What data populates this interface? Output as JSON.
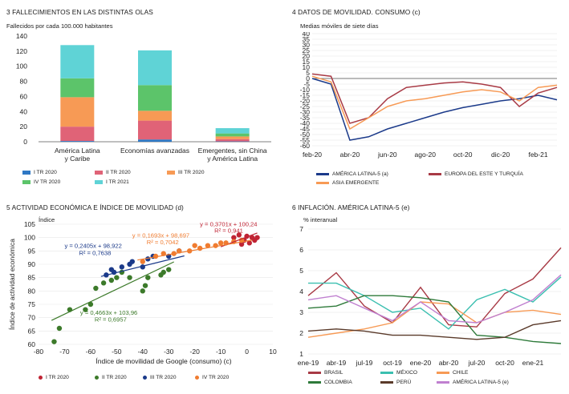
{
  "panels": {
    "p1": {
      "title": "3  FALLECIMIENTOS EN LAS DISTINTAS OLAS",
      "subtitle": "Fallecidos por cada 100.000 habitantes"
    },
    "p2": {
      "title": "4  DATOS DE MOVILIDAD. CONSUMO (c)",
      "subtitle": "Medias móviles de siete días"
    },
    "p3": {
      "title": "5  ACTIVIDAD ECONÓMICA E ÍNDICE DE MOVILIDAD (d)",
      "subtitle": "Índice"
    },
    "p4": {
      "title": "6  INFLACIÓN. AMÉRICA LATINA-5 (e)",
      "subtitle": "% interanual"
    }
  },
  "colors": {
    "blue_dark": "#1f4e8c",
    "blue": "#2f78c4",
    "red": "#e06377",
    "orange": "#f79a55",
    "green": "#5cc46a",
    "cyan": "#5fd3d6",
    "burgundy": "#a83a45",
    "navy": "#1b3a8a",
    "crimson": "#c02434",
    "dgreen": "#3c7a2a",
    "teal": "#3bbfb0",
    "brown": "#5a3a2a",
    "purple": "#c080d0",
    "dbrown": "#7a3b2a",
    "forest": "#2e7a3a",
    "grid": "#cfcfcf"
  },
  "chart_data": [
    {
      "type": "bar",
      "stacked": true,
      "title": "3  FALLECIMIENTOS EN LAS DISTINTAS OLAS",
      "subtitle": "Fallecidos por cada 100.000 habitantes",
      "categories": [
        "América Latina\ny Caribe",
        "Economías avanzadas",
        "Emergentes, sin China\ny América Latina"
      ],
      "series": [
        {
          "name": "I TR 2020",
          "color": "#2f78c4",
          "values": [
            1,
            3,
            0.5
          ]
        },
        {
          "name": "II TR 2020",
          "color": "#e06377",
          "values": [
            19,
            25,
            3
          ]
        },
        {
          "name": "III TR 2020",
          "color": "#f79a55",
          "values": [
            39,
            13,
            3.5
          ]
        },
        {
          "name": "IV TR 2020",
          "color": "#5cc46a",
          "values": [
            25,
            34,
            4
          ]
        },
        {
          "name": "I TR 2021",
          "color": "#5fd3d6",
          "values": [
            44,
            46,
            7
          ]
        }
      ],
      "ylim": [
        0,
        140
      ],
      "yticks": [
        0,
        20,
        40,
        60,
        80,
        100,
        120,
        140
      ],
      "grid": false,
      "legend": "bottom"
    },
    {
      "type": "line",
      "title": "4  DATOS DE MOVILIDAD. CONSUMO (c)",
      "subtitle": "Medias móviles de siete días",
      "x": [
        "feb-20",
        "mar-20",
        "abr-20",
        "may-20",
        "jun-20",
        "jul-20",
        "ago-20",
        "sep-20",
        "oct-20",
        "nov-20",
        "dic-20",
        "ene-21",
        "feb-21",
        "mar-21"
      ],
      "xticks": [
        "feb-20",
        "abr-20",
        "jun-20",
        "ago-20",
        "oct-20",
        "dic-20",
        "feb-21"
      ],
      "series": [
        {
          "name": "AMÉRICA LATINA-5 (a)",
          "color": "#1b3a8a",
          "values": [
            0,
            -5,
            -55,
            -52,
            -45,
            -40,
            -35,
            -30,
            -26,
            -23,
            -20,
            -18,
            -15,
            -19
          ]
        },
        {
          "name": "EUROPA DEL ESTE Y TURQUÍA",
          "color": "#a83a45",
          "values": [
            4,
            2,
            -40,
            -35,
            -18,
            -8,
            -6,
            -4,
            -3,
            -5,
            -8,
            -25,
            -13,
            -8
          ]
        },
        {
          "name": "ASIA EMERGENTE",
          "color": "#f79a55",
          "values": [
            2,
            -3,
            -45,
            -35,
            -25,
            -20,
            -18,
            -15,
            -12,
            -10,
            -12,
            -20,
            -8,
            -6
          ]
        }
      ],
      "ylim": [
        -60,
        40
      ],
      "yticks": [
        -60,
        -55,
        -50,
        -45,
        -40,
        -35,
        -30,
        -25,
        -20,
        -15,
        -10,
        -5,
        0,
        5,
        10,
        15,
        20,
        25,
        30,
        35,
        40
      ],
      "grid": true,
      "legend": "bottom"
    },
    {
      "type": "scatter",
      "title": "5  ACTIVIDAD ECONÓMICA E ÍNDICE DE MOVILIDAD (d)",
      "subtitle": "Índice",
      "xlabel": "Índice de movilidad de Google (consumo) (c)",
      "ylabel": "Índice de actividad económica",
      "xlim": [
        -80,
        10
      ],
      "ylim": [
        60,
        105
      ],
      "xticks": [
        -80,
        -70,
        -60,
        -50,
        -40,
        -30,
        -20,
        -10,
        0,
        10
      ],
      "yticks": [
        60,
        65,
        70,
        75,
        80,
        85,
        90,
        95,
        100,
        105
      ],
      "series": [
        {
          "name": "I TR 2020",
          "color": "#c02434",
          "points": [
            [
              -3,
              101
            ],
            [
              -1,
              99
            ],
            [
              0,
              100.5
            ],
            [
              1,
              98
            ],
            [
              2,
              100
            ],
            [
              3,
              99
            ],
            [
              -5,
              100
            ],
            [
              -2,
              97.5
            ],
            [
              4,
              100
            ]
          ]
        },
        {
          "name": "II TR 2020",
          "color": "#3c7a2a",
          "points": [
            [
              -74,
              61
            ],
            [
              -72,
              66
            ],
            [
              -68,
              73
            ],
            [
              -62,
              73
            ],
            [
              -60,
              75
            ],
            [
              -58,
              81
            ],
            [
              -55,
              83
            ],
            [
              -52,
              84
            ],
            [
              -50,
              85
            ],
            [
              -48,
              87
            ],
            [
              -45,
              85
            ],
            [
              -40,
              80
            ],
            [
              -39,
              82
            ],
            [
              -38,
              85
            ],
            [
              -33,
              86
            ],
            [
              -32,
              87
            ],
            [
              -30,
              88
            ]
          ]
        },
        {
          "name": "III TR 2020",
          "color": "#1b3a8a",
          "points": [
            [
              -54,
              86
            ],
            [
              -52,
              88
            ],
            [
              -51,
              87
            ],
            [
              -48,
              89
            ],
            [
              -45,
              90
            ],
            [
              -44,
              91
            ],
            [
              -40,
              89
            ],
            [
              -38,
              92
            ],
            [
              -36,
              93
            ],
            [
              -30,
              93
            ],
            [
              -26,
              95
            ]
          ]
        },
        {
          "name": "IV TR 2020",
          "color": "#f07c30",
          "points": [
            [
              -40,
              91
            ],
            [
              -35,
              93
            ],
            [
              -32,
              94
            ],
            [
              -28,
              94
            ],
            [
              -26,
              95
            ],
            [
              -22,
              95
            ],
            [
              -20,
              97
            ],
            [
              -18,
              96
            ],
            [
              -15,
              97
            ],
            [
              -12,
              97
            ],
            [
              -10,
              98
            ],
            [
              -8,
              98
            ],
            [
              -5,
              98.5
            ],
            [
              -2,
              99
            ]
          ]
        }
      ],
      "trendlines": [
        {
          "series": "I TR 2020",
          "equation": "y = 0,3701x + 100,24",
          "r2": "R² = 0,941",
          "slope": 0.3701,
          "intercept": 100.24,
          "range": [
            -10,
            4
          ]
        },
        {
          "series": "II TR 2020",
          "equation": "y = 0,4663x + 103,96",
          "r2": "R² = 0,6957",
          "slope": 0.4663,
          "intercept": 103.96,
          "range": [
            -75,
            -28
          ]
        },
        {
          "series": "III TR 2020",
          "equation": "y = 0,2405x + 98,922",
          "r2": "R² = 0,7638",
          "slope": 0.2405,
          "intercept": 98.922,
          "range": [
            -56,
            -24
          ]
        },
        {
          "series": "IV TR 2020",
          "equation": "y = 0,1693x + 98,697",
          "r2": "R² = 0,7042",
          "slope": 0.1693,
          "intercept": 98.697,
          "range": [
            -42,
            2
          ]
        }
      ],
      "grid": true,
      "legend": "bottom"
    },
    {
      "type": "line",
      "title": "6  INFLACIÓN. AMÉRICA LATINA-5 (e)",
      "subtitle": "% interanual",
      "x": [
        "ene-19",
        "abr-19",
        "jul-19",
        "oct-19",
        "ene-20",
        "abr-20",
        "jul-20",
        "oct-20",
        "ene-21",
        "mar-21"
      ],
      "xticks": [
        "ene-19",
        "abr-19",
        "jul-19",
        "oct-19",
        "ene-20",
        "abr-20",
        "jul-20",
        "oct-20",
        "ene-21"
      ],
      "series": [
        {
          "name": "BRASIL",
          "color": "#a83a45",
          "values": [
            3.8,
            4.9,
            3.3,
            2.5,
            4.2,
            2.4,
            2.3,
            3.9,
            4.6,
            6.1
          ]
        },
        {
          "name": "MÉXICO",
          "color": "#3bbfb0",
          "values": [
            4.4,
            4.4,
            3.8,
            3.0,
            3.2,
            2.2,
            3.6,
            4.1,
            3.5,
            4.7
          ]
        },
        {
          "name": "CHILE",
          "color": "#f79a55",
          "values": [
            1.8,
            2.0,
            2.2,
            2.5,
            3.5,
            3.4,
            2.5,
            3.0,
            3.1,
            2.9
          ]
        },
        {
          "name": "COLOMBIA",
          "color": "#2e7a3a",
          "values": [
            3.2,
            3.3,
            3.8,
            3.8,
            3.7,
            3.5,
            1.9,
            1.8,
            1.6,
            1.5
          ]
        },
        {
          "name": "PERÚ",
          "color": "#5a3a2a",
          "values": [
            2.1,
            2.2,
            2.1,
            1.9,
            1.9,
            1.8,
            1.7,
            1.8,
            2.4,
            2.6
          ]
        },
        {
          "name": "AMÉRICA LATINA-5 (e)",
          "color": "#c080d0",
          "values": [
            3.6,
            3.8,
            3.2,
            2.6,
            3.5,
            2.6,
            2.5,
            3.0,
            3.6,
            4.8
          ]
        }
      ],
      "ylim": [
        1,
        7
      ],
      "yticks": [
        1,
        2,
        3,
        4,
        5,
        6,
        7
      ],
      "grid": true,
      "legend": "bottom"
    }
  ],
  "legends": {
    "p1": [
      "I TR 2020",
      "II TR 2020",
      "III TR 2020",
      "IV TR 2020",
      "I TR 2021"
    ],
    "p2": [
      "AMÉRICA LATINA-5 (a)",
      "EUROPA DEL ESTE Y TURQUÍA",
      "ASIA EMERGENTE"
    ],
    "p3": [
      "I TR 2020",
      "II TR 2020",
      "III TR 2020",
      "IV TR 2020"
    ],
    "p4": [
      "BRASIL",
      "MÉXICO",
      "CHILE",
      "COLOMBIA",
      "PERÚ",
      "AMÉRICA LATINA-5 (e)"
    ]
  }
}
